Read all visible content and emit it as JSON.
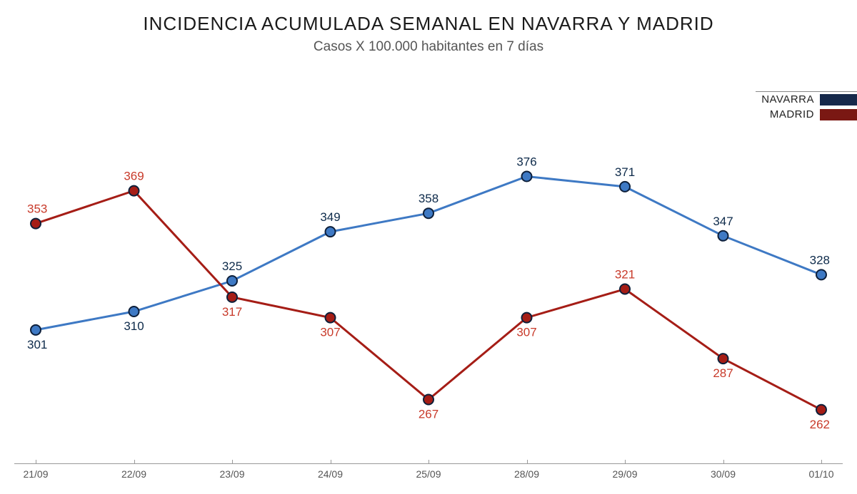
{
  "title": "INCIDENCIA ACUMULADA SEMANAL EN NAVARRA Y MADRID",
  "subtitle": "Casos X 100.000 habitantes en 7 días",
  "chart": {
    "type": "line",
    "categories": [
      "21/09",
      "22/09",
      "23/09",
      "24/09",
      "25/09",
      "28/09",
      "29/09",
      "30/09",
      "01/10"
    ],
    "y_min": 240,
    "y_max": 395,
    "background_color": "#ffffff",
    "axis_color": "#999999",
    "line_width": 3,
    "marker_radius": 7,
    "marker_border": "#0d1f3a",
    "label_fontsize": 17,
    "series": [
      {
        "name": "NAVARRA",
        "color": "#3e79c4",
        "label_color": "#0d2a4a",
        "values": [
          301,
          310,
          325,
          349,
          358,
          376,
          371,
          347,
          328
        ],
        "label_pos": [
          "below",
          "below",
          "above",
          "above",
          "above",
          "above",
          "above",
          "above",
          "above"
        ]
      },
      {
        "name": "MADRID",
        "color": "#a51d16",
        "label_color": "#c83a2a",
        "values": [
          353,
          369,
          317,
          307,
          267,
          307,
          321,
          287,
          262
        ],
        "label_pos": [
          "above",
          "above",
          "below",
          "below",
          "below",
          "below",
          "above",
          "below",
          "below"
        ]
      }
    ]
  },
  "legend": {
    "items": [
      {
        "label": "NAVARRA",
        "color": "#16294b"
      },
      {
        "label": "MADRID",
        "color": "#7a1813"
      }
    ]
  }
}
